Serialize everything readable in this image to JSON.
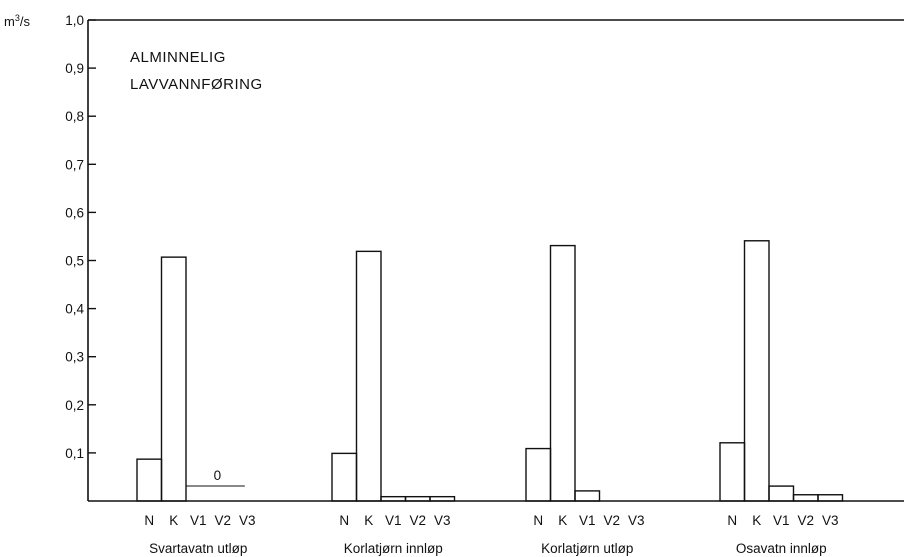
{
  "chart_data": {
    "type": "bar",
    "title": "ALMINNELIG LAVVANNFØRING",
    "title_lines": [
      "ALMINNELIG",
      "LAVVANNFØRING"
    ],
    "ylabel": "m³/s",
    "ylabel_base": "m",
    "ylabel_sup": "3",
    "ylabel_suffix": "/s",
    "ylim": [
      0,
      1.0
    ],
    "yticks": [
      "0,1",
      "0,2",
      "0,3",
      "0,4",
      "0,5",
      "0,6",
      "0,7",
      "0,8",
      "0,9",
      "1,0"
    ],
    "grid": false,
    "legend": "none",
    "bar_labels": [
      "N",
      "K",
      "V1",
      "V2",
      "V3"
    ],
    "groups": [
      {
        "name": "Svartavatn utløp",
        "values": [
          0.087,
          0.507,
          0,
          0,
          0
        ],
        "annotation": "0"
      },
      {
        "name": "Korlatjørn innløp",
        "values": [
          0.099,
          0.519,
          0.009,
          0.009,
          0.009
        ]
      },
      {
        "name": "Korlatjørn utløp",
        "values": [
          0.109,
          0.531,
          0.021,
          0,
          0
        ]
      },
      {
        "name": "Osavatn innløp",
        "values": [
          0.121,
          0.541,
          0.031,
          0.013,
          0.013
        ]
      }
    ]
  }
}
